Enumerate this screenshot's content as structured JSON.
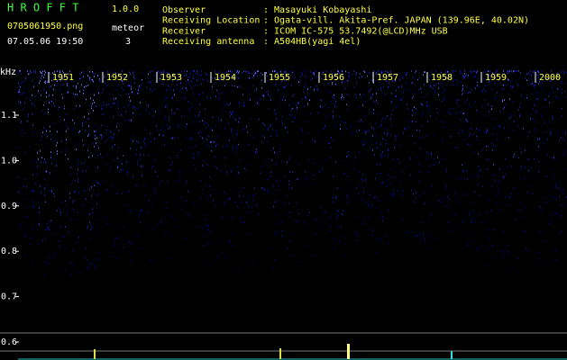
{
  "header": {
    "app_name": "H R O F F T",
    "version": "1.0.0",
    "filename": "0705061950.png",
    "datetime": "07.05.06 19:50",
    "meteor_label": "meteor",
    "meteor_count": "3"
  },
  "info": [
    {
      "label": "Observer",
      "value": ": Masayuki Kobayashi"
    },
    {
      "label": "Receiving Location",
      "value": ": Ogata-vill. Akita-Pref. JAPAN (139.96E, 40.02N)"
    },
    {
      "label": "Receiver",
      "value": ": ICOM IC-575 53.7492(@LCD)MHz USB"
    },
    {
      "label": "Receiving antenna",
      "value": ": A504HB(yagi 4el)"
    }
  ],
  "spectrogram": {
    "unit": "kHz",
    "freq_labels": [
      "1.1",
      "1.0",
      "0.9",
      "0.8",
      "0.7",
      "0.6"
    ],
    "time_labels": [
      "1951",
      "1952",
      "1953",
      "1954",
      "1955",
      "1956",
      "1957",
      "1958",
      "1959",
      "2000"
    ]
  }
}
